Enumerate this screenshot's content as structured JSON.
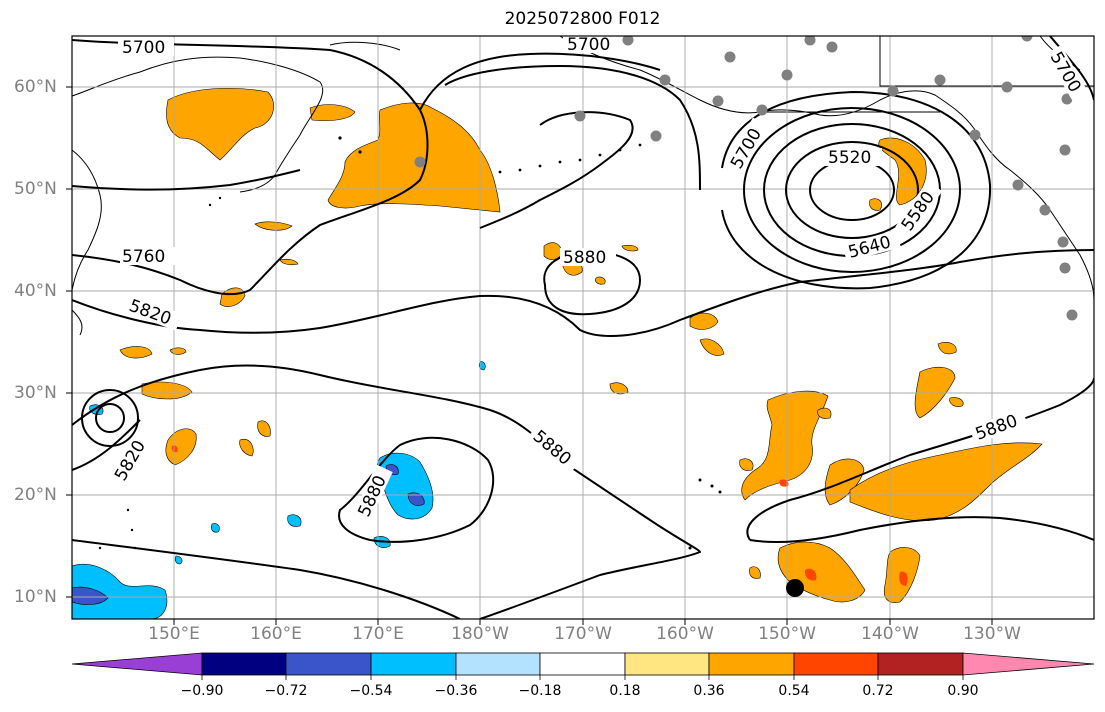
{
  "title": "2025072800 F012",
  "lat_labels": [
    "60°N",
    "50°N",
    "40°N",
    "30°N",
    "20°N",
    "10°N"
  ],
  "lon_labels": [
    "150°E",
    "160°E",
    "170°E",
    "180°W",
    "170°W",
    "160°W",
    "150°W",
    "140°W",
    "130°W"
  ],
  "contour_labels": [
    "5700",
    "5700",
    "5700",
    "5700",
    "5520",
    "5580",
    "5640",
    "5760",
    "5820",
    "5820",
    "5880",
    "5880",
    "5880",
    "5880"
  ],
  "colorbar": {
    "ticks": [
      "−0.90",
      "−0.72",
      "−0.54",
      "−0.36",
      "−0.18",
      "0.18",
      "0.36",
      "0.54",
      "0.72",
      "0.90"
    ],
    "colors": [
      "#9a3fd6",
      "#000080",
      "#3a55c9",
      "#00bfff",
      "#b3e2ff",
      "#ffffff",
      "#ffe680",
      "#ffa500",
      "#ff4500",
      "#b22222",
      "#ff88b0"
    ]
  },
  "colors": {
    "positive_fill": "#ffa500",
    "negative_fill": "#00bfff",
    "station_marker": "#808080",
    "center_marker": "#000000"
  }
}
